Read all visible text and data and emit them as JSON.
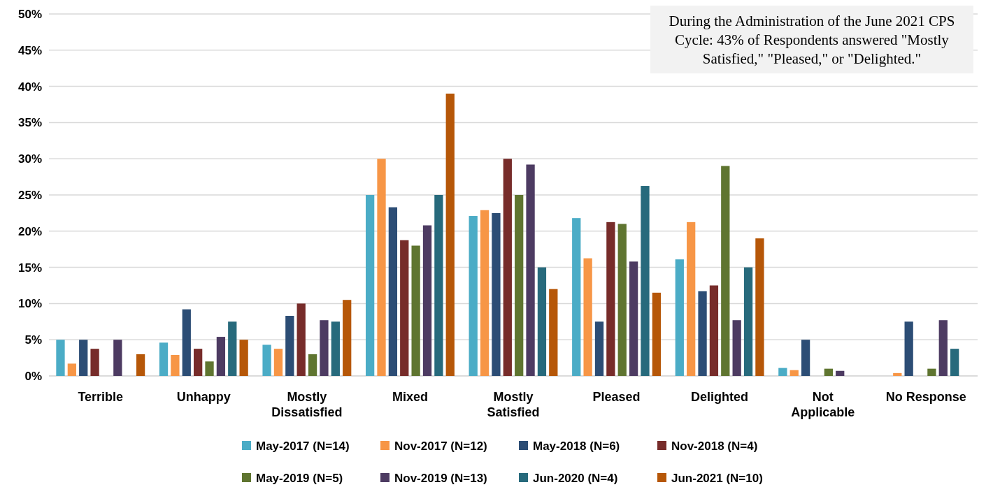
{
  "chart_data": {
    "type": "bar",
    "categories": [
      "Terrible",
      "Unhappy",
      "Mostly Dissatisfied",
      "Mixed",
      "Mostly Satisfied",
      "Pleased",
      "Delighted",
      "Not Applicable",
      "No Response"
    ],
    "series": [
      {
        "name": "May-2017 (N=14)",
        "color": "#4bacc6",
        "values": [
          5,
          4.6,
          4.3,
          25,
          22.1,
          21.8,
          16.1,
          1.1,
          0
        ]
      },
      {
        "name": "Nov-2017 (N=12)",
        "color": "#f79646",
        "values": [
          1.7,
          2.9,
          3.75,
          30,
          22.9,
          16.25,
          21.25,
          0.8,
          0.4
        ]
      },
      {
        "name": "May-2018 (N=6)",
        "color": "#2c4d75",
        "values": [
          5,
          9.2,
          8.3,
          23.3,
          22.5,
          7.5,
          11.7,
          5,
          7.5
        ]
      },
      {
        "name": "Nov-2018 (N=4)",
        "color": "#772c2a",
        "values": [
          3.75,
          3.75,
          10,
          18.75,
          30,
          21.25,
          12.5,
          0,
          0
        ]
      },
      {
        "name": "May-2019 (N=5)",
        "color": "#5f7530",
        "values": [
          0,
          2,
          3,
          18,
          25,
          21,
          29,
          1,
          1
        ]
      },
      {
        "name": "Nov-2019 (N=13)",
        "color": "#4d3b62",
        "values": [
          5,
          5.4,
          7.7,
          20.8,
          29.2,
          15.8,
          7.7,
          0.7,
          7.7
        ]
      },
      {
        "name": "Jun-2020 (N=4)",
        "color": "#276a7c",
        "values": [
          0,
          7.5,
          7.5,
          25,
          15,
          26.25,
          15,
          0,
          3.75
        ]
      },
      {
        "name": "Jun-2021 (N=10)",
        "color": "#b65708",
        "values": [
          3,
          5,
          10.5,
          39,
          12,
          11.5,
          19,
          0,
          0
        ]
      }
    ],
    "ylim": [
      0,
      50
    ],
    "yticks": [
      {
        "value": 0,
        "label": "0%"
      },
      {
        "value": 5,
        "label": "5%"
      },
      {
        "value": 10,
        "label": "10%"
      },
      {
        "value": 15,
        "label": "15%"
      },
      {
        "value": 20,
        "label": "20%"
      },
      {
        "value": 25,
        "label": "25%"
      },
      {
        "value": 30,
        "label": "30%"
      },
      {
        "value": 35,
        "label": "35%"
      },
      {
        "value": 40,
        "label": "40%"
      },
      {
        "value": 45,
        "label": "45%"
      },
      {
        "value": 50,
        "label": "50%"
      }
    ],
    "grid": "y",
    "legend": "bottom",
    "annotations": [
      "During the Administration of the June 2021 CPS Cycle: 43% of Respondents answered \"Mostly Satisfied,\" \"Pleased,\" or \"Delighted.\""
    ]
  }
}
